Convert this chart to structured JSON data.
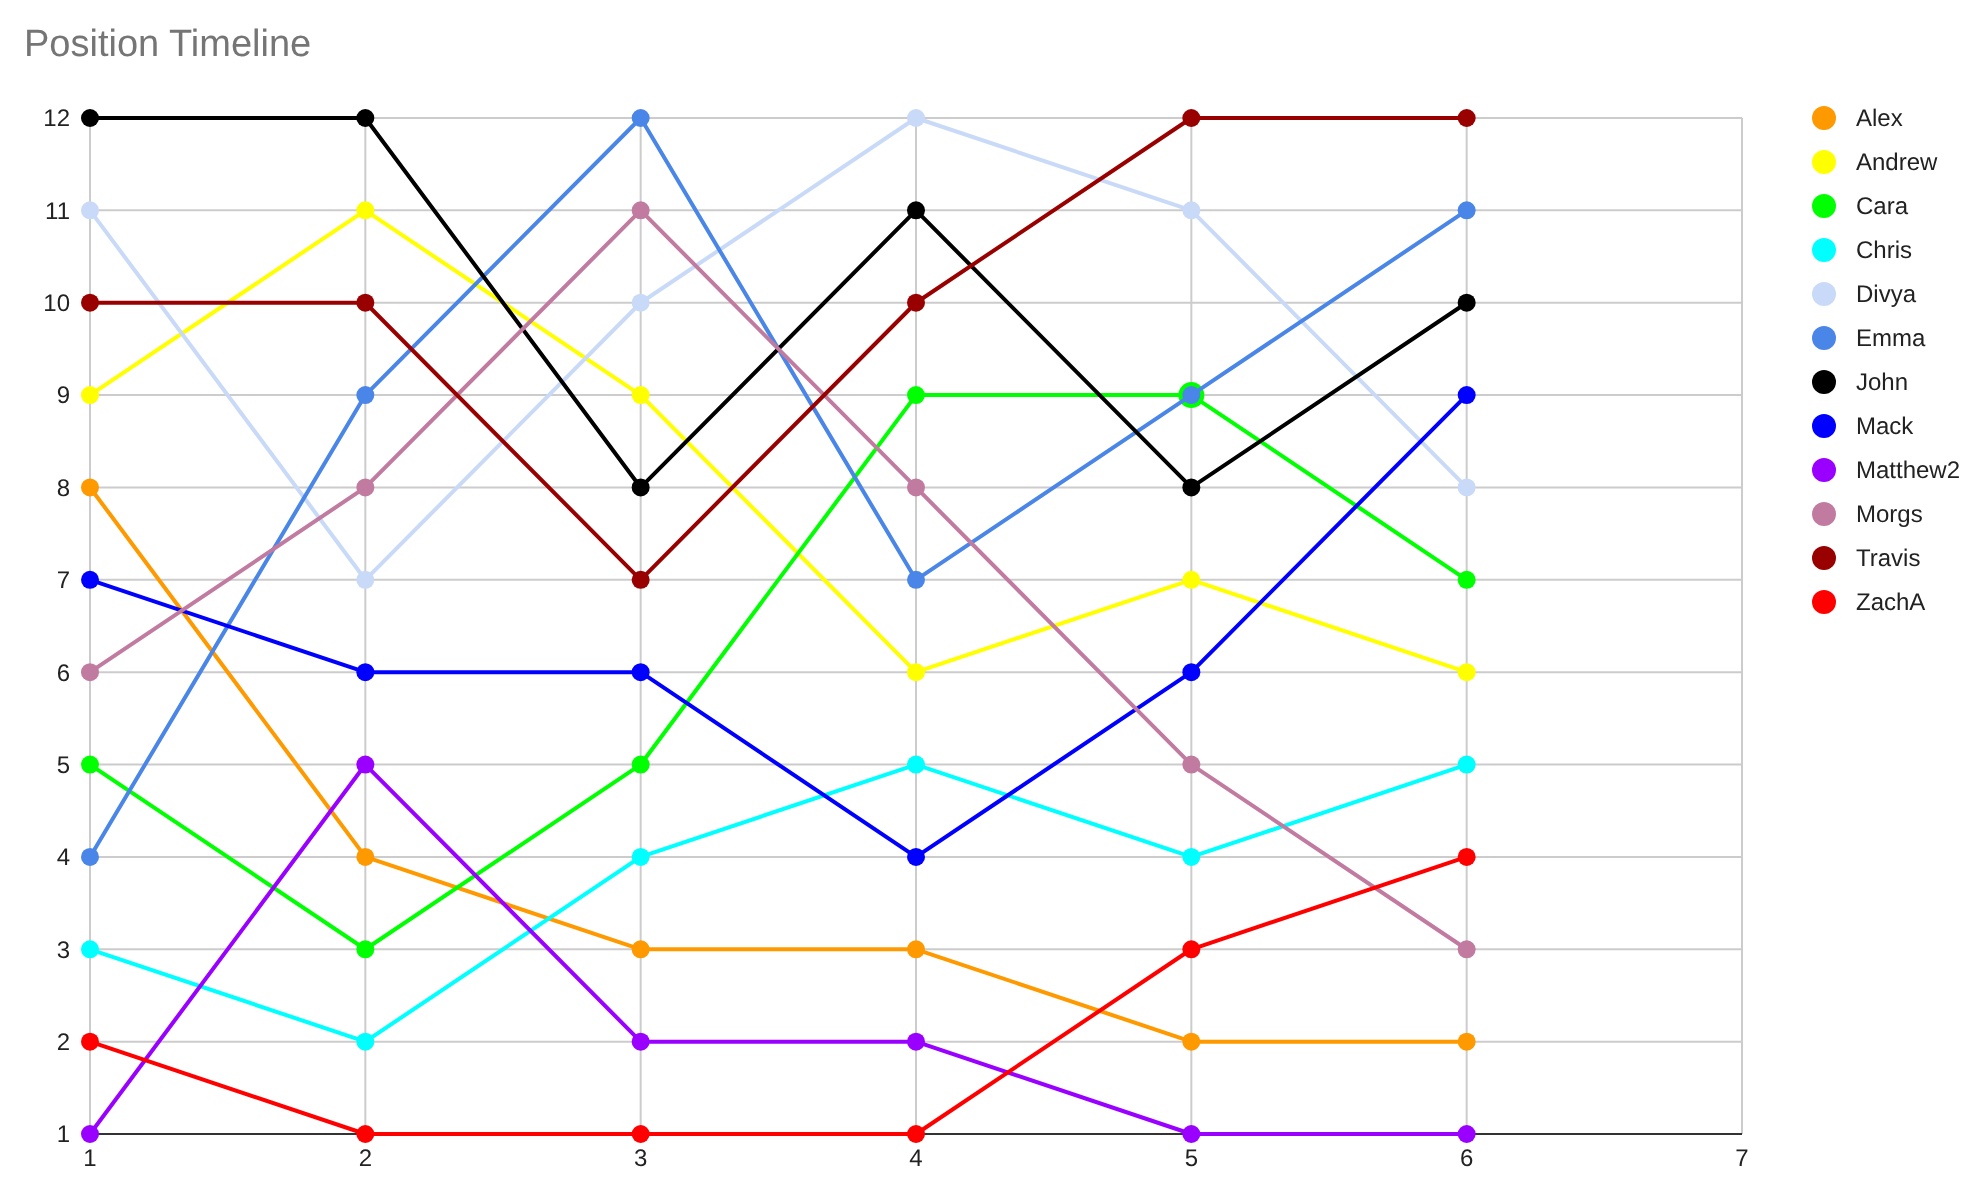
{
  "chart_data": {
    "type": "line",
    "title": "Position Timeline",
    "x": [
      1,
      2,
      3,
      4,
      5,
      6
    ],
    "xlim": [
      1,
      7
    ],
    "xticks": [
      1,
      2,
      3,
      4,
      5,
      6,
      7
    ],
    "ylim": [
      1,
      12
    ],
    "yticks": [
      1,
      2,
      3,
      4,
      5,
      6,
      7,
      8,
      9,
      10,
      11,
      12
    ],
    "grid": true,
    "legend": "right",
    "marker": "circle",
    "line_style": "solid",
    "series": [
      {
        "name": "Alex",
        "color": "#ff9900",
        "values": [
          8,
          4,
          3,
          3,
          2,
          2
        ]
      },
      {
        "name": "Andrew",
        "color": "#ffff00",
        "values": [
          9,
          11,
          9,
          6,
          7,
          6
        ]
      },
      {
        "name": "Cara",
        "color": "#00ff00",
        "values": [
          5,
          3,
          5,
          9,
          9,
          7
        ]
      },
      {
        "name": "Chris",
        "color": "#00ffff",
        "values": [
          3,
          2,
          4,
          5,
          4,
          5
        ]
      },
      {
        "name": "Divya",
        "color": "#c9daf8",
        "values": [
          11,
          7,
          10,
          12,
          11,
          8
        ]
      },
      {
        "name": "Emma",
        "color": "#4a86e8",
        "values": [
          4,
          9,
          12,
          7,
          9,
          11
        ]
      },
      {
        "name": "John",
        "color": "#000000",
        "values": [
          12,
          12,
          8,
          11,
          8,
          10
        ]
      },
      {
        "name": "Mack",
        "color": "#0000ff",
        "values": [
          7,
          6,
          6,
          4,
          6,
          9
        ]
      },
      {
        "name": "Matthew2",
        "color": "#9900ff",
        "values": [
          1,
          5,
          2,
          2,
          1,
          1
        ]
      },
      {
        "name": "Morgs",
        "color": "#c27ba0",
        "values": [
          6,
          8,
          11,
          8,
          5,
          3
        ]
      },
      {
        "name": "Travis",
        "color": "#990000",
        "values": [
          10,
          10,
          7,
          10,
          12,
          12
        ]
      },
      {
        "name": "ZachA",
        "color": "#ff0000",
        "values": [
          2,
          1,
          1,
          1,
          3,
          4
        ]
      }
    ]
  }
}
